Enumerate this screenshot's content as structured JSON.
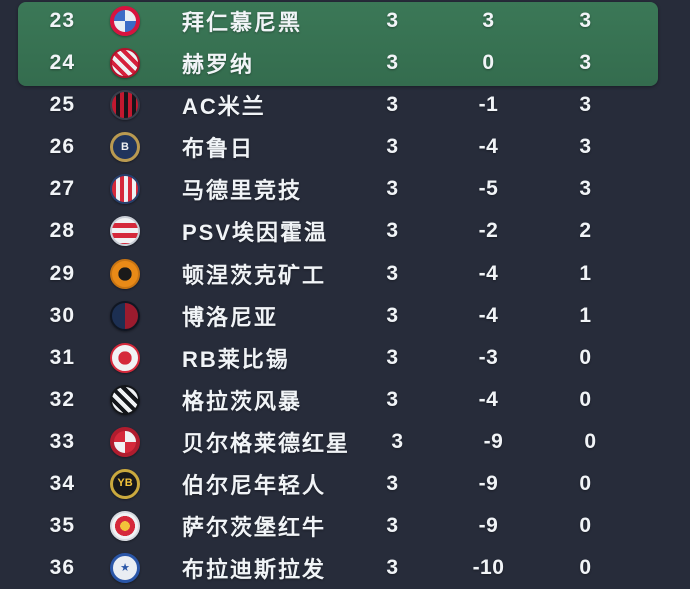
{
  "table": {
    "background_color": "#272c3a",
    "highlight_color": "#377052",
    "text_color": "#f1f4f7",
    "highlighted_ranks": [
      "23",
      "24"
    ],
    "rows": [
      {
        "rank": "23",
        "team": "拜仁慕尼黑",
        "played": "3",
        "gd": "3",
        "pts": "3",
        "highlight": true,
        "logo": {
          "name": "bayern-munich-crest",
          "style": "checker",
          "c1": "#d8133f",
          "c2": "#e9eef4",
          "c3": "#3b6bc7",
          "text": ""
        }
      },
      {
        "rank": "24",
        "team": "赫罗纳",
        "played": "3",
        "gd": "0",
        "pts": "3",
        "highlight": true,
        "logo": {
          "name": "girona-crest",
          "style": "dstripes",
          "c1": "#d6203c",
          "c2": "#eef1f4",
          "c3": "#b3122c",
          "text": ""
        }
      },
      {
        "rank": "25",
        "team": "AC米兰",
        "played": "3",
        "gd": "-1",
        "pts": "3",
        "highlight": false,
        "logo": {
          "name": "ac-milan-crest",
          "style": "vstripes",
          "c1": "#c2182f",
          "c2": "#17141a",
          "c3": "#3a3f4c",
          "text": ""
        }
      },
      {
        "rank": "26",
        "team": "布鲁日",
        "played": "3",
        "gd": "-4",
        "pts": "3",
        "highlight": false,
        "logo": {
          "name": "club-brugge-crest",
          "style": "ring",
          "c1": "#b99a51",
          "c2": "#20345c",
          "c3": "#f0f2f4",
          "text": "B"
        }
      },
      {
        "rank": "27",
        "team": "马德里竞技",
        "played": "3",
        "gd": "-5",
        "pts": "3",
        "highlight": false,
        "logo": {
          "name": "atletico-madrid-crest",
          "style": "vstripes",
          "c1": "#d5293b",
          "c2": "#eef1f4",
          "c3": "#27406e",
          "text": ""
        }
      },
      {
        "rank": "28",
        "team": "PSV埃因霍温",
        "played": "3",
        "gd": "-2",
        "pts": "2",
        "highlight": false,
        "logo": {
          "name": "psv-eindhoven-crest",
          "style": "hstripes",
          "c1": "#d5293b",
          "c2": "#f0f2f4",
          "c3": "#c9ced6",
          "text": ""
        }
      },
      {
        "rank": "29",
        "team": "顿涅茨克矿工",
        "played": "3",
        "gd": "-4",
        "pts": "1",
        "highlight": false,
        "logo": {
          "name": "shakhtar-donetsk-crest",
          "style": "dot",
          "c1": "#1a1a1a",
          "c2": "#e98a17",
          "c3": "#c77413",
          "text": ""
        }
      },
      {
        "rank": "30",
        "team": "博洛尼亚",
        "played": "3",
        "gd": "-4",
        "pts": "1",
        "highlight": false,
        "logo": {
          "name": "bologna-crest",
          "style": "halfv",
          "c1": "#1c2f52",
          "c2": "#9b1b2e",
          "c3": "#101622",
          "text": ""
        }
      },
      {
        "rank": "31",
        "team": "RB莱比锡",
        "played": "3",
        "gd": "-3",
        "pts": "0",
        "highlight": false,
        "logo": {
          "name": "rb-leipzig-crest",
          "style": "dot",
          "c1": "#d5293b",
          "c2": "#f0f2f4",
          "c3": "#d5293b",
          "text": ""
        }
      },
      {
        "rank": "32",
        "team": "格拉茨风暴",
        "played": "3",
        "gd": "-4",
        "pts": "0",
        "highlight": false,
        "logo": {
          "name": "sturm-graz-crest",
          "style": "dstripes",
          "c1": "#14161a",
          "c2": "#f0f2f4",
          "c3": "#14161a",
          "text": ""
        }
      },
      {
        "rank": "33",
        "team": "贝尔格莱德红星",
        "played": "3",
        "gd": "-9",
        "pts": "0",
        "highlight": false,
        "logo": {
          "name": "red-star-belgrade-crest",
          "style": "checker",
          "c1": "#b01c2e",
          "c2": "#f0f2f4",
          "c3": "#d5293b",
          "text": ""
        }
      },
      {
        "rank": "34",
        "team": "伯尔尼年轻人",
        "played": "3",
        "gd": "-9",
        "pts": "0",
        "highlight": false,
        "logo": {
          "name": "young-boys-crest",
          "style": "ring",
          "c1": "#caa93e",
          "c2": "#17181c",
          "c3": "#f2c23a",
          "text": "YB"
        }
      },
      {
        "rank": "35",
        "team": "萨尔茨堡红牛",
        "played": "3",
        "gd": "-9",
        "pts": "0",
        "highlight": false,
        "logo": {
          "name": "rb-salzburg-crest",
          "style": "sun",
          "c1": "#d5293b",
          "c2": "#f0f2f4",
          "c3": "#f2c23a",
          "text": ""
        }
      },
      {
        "rank": "36",
        "team": "布拉迪斯拉发",
        "played": "3",
        "gd": "-10",
        "pts": "0",
        "highlight": false,
        "logo": {
          "name": "slovan-bratislava-crest",
          "style": "ring",
          "c1": "#2a56a8",
          "c2": "#e9edf3",
          "c3": "#2a56a8",
          "text": "★"
        }
      }
    ]
  }
}
